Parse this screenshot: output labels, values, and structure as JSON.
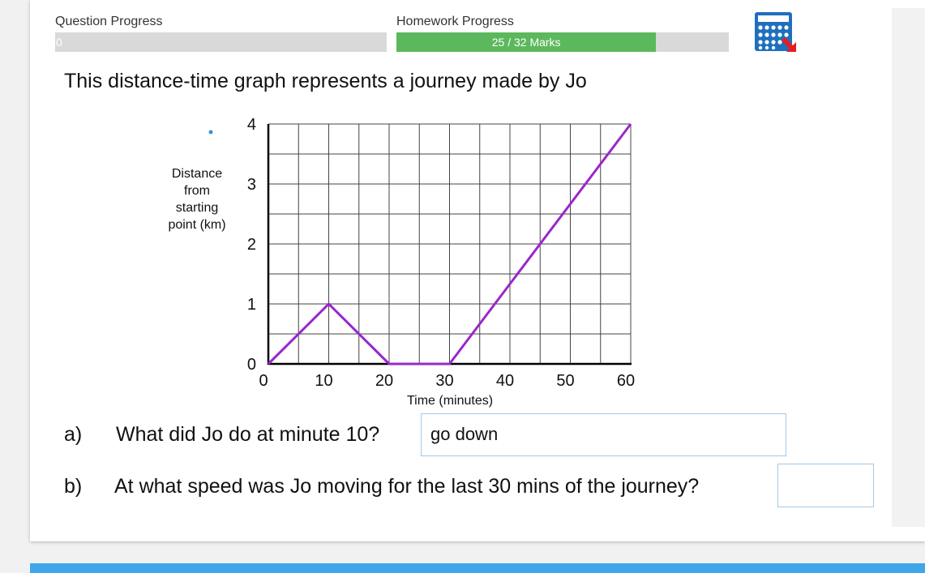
{
  "progress": {
    "question": {
      "label": "Question Progress",
      "value_label": "0",
      "value": 0
    },
    "homework": {
      "label": "Homework Progress",
      "value_label": "25 / 32 Marks",
      "value": 25,
      "max": 32
    }
  },
  "question": {
    "title": "This distance-time graph represents a journey made by Jo",
    "parts": [
      {
        "label": "a)",
        "text": "What did Jo do at minute 10?",
        "answer": "go down"
      },
      {
        "label": "b)",
        "text": "At what speed was Jo moving for the last 30 mins of the journey?"
      }
    ]
  },
  "chart_data": {
    "type": "line",
    "y_label": "Distance from starting point (km)",
    "x_label": "Time (minutes)",
    "x": [
      0,
      10,
      20,
      30,
      60
    ],
    "series": [
      {
        "color": "#9b27c9",
        "values": [
          0,
          1,
          0,
          0,
          4
        ]
      }
    ],
    "xlim": [
      0,
      60
    ],
    "xticks": [
      0,
      10,
      20,
      30,
      40,
      50,
      60
    ],
    "ylim": [
      0,
      4
    ],
    "yticks": [
      0,
      1,
      2,
      3,
      4
    ],
    "grid": true
  }
}
